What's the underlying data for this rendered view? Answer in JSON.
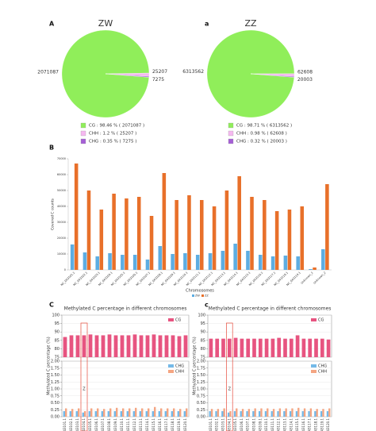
{
  "chart_data": [
    {
      "type": "pie",
      "panel": "A",
      "title": "ZW",
      "categories": [
        "CG",
        "CHH",
        "CHG"
      ],
      "values": [
        2071087,
        25207,
        7275
      ],
      "colors": [
        "#90ee5a",
        "#f5b8f0",
        "#a55fd6"
      ],
      "legend": [
        "CG : 98.46 % ( 2071087 )",
        "CHH : 1.2 % ( 25207 )",
        "CHG : 0.35 % ( 7275 )"
      ]
    },
    {
      "type": "pie",
      "panel": "a",
      "title": "ZZ",
      "categories": [
        "CG",
        "CHH",
        "CHG"
      ],
      "values": [
        6313562,
        62608,
        20003
      ],
      "colors": [
        "#90ee5a",
        "#f5b8f0",
        "#a55fd6"
      ],
      "legend": [
        "CG : 98.71 % ( 6313562 )",
        "CHH : 0.98 % ( 62608 )",
        "CHG : 0.32 % ( 20003 )"
      ]
    },
    {
      "type": "bar",
      "panel": "B",
      "xlabel": "Chromosomes",
      "ylabel": "Covered C counts",
      "categories": [
        "NC_043101.1",
        "NC_043102.1",
        "NC_043103.1",
        "NC_043104.1",
        "NC_043105.1",
        "NC_043106.1",
        "NC_043107.1",
        "NC_043108.1",
        "NC_043109.1",
        "NC_043110.1",
        "NC_043111.1",
        "NC_043112.1",
        "NC_043113.1",
        "NC_043114.1",
        "NC_043115.1",
        "NC_043116.1",
        "NC_043117.1",
        "NC_043118.1",
        "NC_043119.1",
        "Unknown_1",
        "Unknown_2"
      ],
      "series": [
        {
          "name": "ZW",
          "color": "#5dade2",
          "values": [
            16000,
            11000,
            8500,
            10500,
            9500,
            9500,
            6500,
            15000,
            10000,
            10500,
            9500,
            10500,
            12000,
            16500,
            12000,
            9500,
            8500,
            9000,
            8500,
            500,
            13000
          ]
        },
        {
          "name": "ZZ",
          "color": "#e8702a",
          "values": [
            67000,
            50000,
            38000,
            48000,
            45000,
            46000,
            34000,
            61000,
            44000,
            47000,
            44000,
            40000,
            50000,
            59000,
            46000,
            44000,
            37000,
            38000,
            40000,
            1500,
            54000
          ]
        }
      ],
      "ylim": [
        0,
        70000
      ],
      "yticks": [
        0,
        10000,
        20000,
        30000,
        40000,
        50000,
        60000,
        70000
      ]
    },
    {
      "type": "broken_bar",
      "panel": "C",
      "title": "Methylated C percentage in different chromosomes",
      "ylabel": "Methylated C percentage (%)",
      "categories": [
        "NC_043101.1",
        "NC_043102.1",
        "NC_043103.1",
        "NC_043104.1",
        "NC_043105.1",
        "NC_043106.1",
        "NC_043107.1",
        "NC_043108.1",
        "NC_043109.1",
        "NC_043110.1",
        "NC_043111.1",
        "NC_043112.1",
        "NC_043113.1",
        "NC_043114.1",
        "NC_043115.1",
        "NC_043116.1",
        "NC_043117.1",
        "NC_043118.1",
        "NC_043119.1",
        "NC_043120.1"
      ],
      "series": [
        {
          "name": "CG",
          "color": "#e75480",
          "axis": "top",
          "values": [
            87,
            88,
            88,
            88,
            88.5,
            88,
            88,
            88.5,
            88,
            88,
            88,
            88.5,
            88,
            88,
            88.5,
            88,
            88,
            88,
            87.5,
            88
          ]
        },
        {
          "name": "CHG",
          "color": "#74b9e8",
          "axis": "bottom",
          "values": [
            0.2,
            0.2,
            0.2,
            0.15,
            0.2,
            0.2,
            0.2,
            0.2,
            0.2,
            0.2,
            0.2,
            0.2,
            0.2,
            0.2,
            0.2,
            0.2,
            0.2,
            0.2,
            0.2,
            0.2
          ]
        },
        {
          "name": "CHH",
          "color": "#f4a582",
          "axis": "bottom",
          "values": [
            0.3,
            0.28,
            0.3,
            0.2,
            0.3,
            0.3,
            0.28,
            0.3,
            0.32,
            0.3,
            0.3,
            0.32,
            0.3,
            0.3,
            0.35,
            0.3,
            0.3,
            0.3,
            0.28,
            0.3
          ]
        }
      ],
      "ylim_top": [
        75,
        100
      ],
      "yticks_top": [
        75,
        80,
        85,
        90,
        95,
        100
      ],
      "ylim_bottom": [
        0,
        2.0
      ],
      "yticks_bottom": [
        {
          "value": 0,
          "label": "0.00"
        },
        {
          "value": 0.25,
          "label": "0.25"
        },
        {
          "value": 0.5,
          "label": "0.50"
        },
        {
          "value": 0.75,
          "label": "0.75"
        },
        {
          "value": 1.0,
          "label": "1.00"
        },
        {
          "value": 1.25,
          "label": "1.25"
        },
        {
          "value": 1.5,
          "label": "1.50"
        },
        {
          "value": 1.75,
          "label": "1.75"
        },
        {
          "value": 2.0,
          "label": "2.00"
        }
      ],
      "highlight_index": 3,
      "highlight_label": "Z"
    },
    {
      "type": "broken_bar",
      "panel": "c",
      "title": "Methylated C percentage in different chromosomes",
      "ylabel": "Methylated C percentage (%)",
      "categories": [
        "NC_043101.1",
        "NC_043102.1",
        "NC_043103.1",
        "NC_043104.1",
        "NC_043105.1",
        "NC_043106.1",
        "NC_043107.1",
        "NC_043108.1",
        "NC_043109.1",
        "NC_043110.1",
        "NC_043111.1",
        "NC_043112.1",
        "NC_043113.1",
        "NC_043114.1",
        "NC_043115.1",
        "NC_043116.1",
        "NC_043117.1",
        "NC_043118.1",
        "NC_043119.1",
        "NC_043120.1"
      ],
      "series": [
        {
          "name": "CG",
          "color": "#e75480",
          "axis": "top",
          "values": [
            86,
            86,
            86,
            86,
            86.5,
            86,
            86,
            86,
            86,
            86,
            86,
            86.5,
            86,
            86,
            88,
            86,
            86,
            86,
            86,
            85.5
          ]
        },
        {
          "name": "CHG",
          "color": "#74b9e8",
          "axis": "bottom",
          "values": [
            0.2,
            0.2,
            0.2,
            0.15,
            0.2,
            0.2,
            0.2,
            0.2,
            0.2,
            0.2,
            0.2,
            0.2,
            0.2,
            0.2,
            0.2,
            0.2,
            0.2,
            0.2,
            0.2,
            0.2
          ]
        },
        {
          "name": "CHH",
          "color": "#f4a582",
          "axis": "bottom",
          "values": [
            0.28,
            0.28,
            0.3,
            0.2,
            0.3,
            0.28,
            0.28,
            0.3,
            0.3,
            0.3,
            0.28,
            0.3,
            0.3,
            0.3,
            0.32,
            0.3,
            0.3,
            0.28,
            0.28,
            0.3
          ]
        }
      ],
      "ylim_top": [
        75,
        100
      ],
      "yticks_top": [
        75,
        80,
        85,
        90,
        95,
        100
      ],
      "ylim_bottom": [
        0,
        2.0
      ],
      "yticks_bottom": [
        {
          "value": 0,
          "label": "0.00"
        },
        {
          "value": 0.25,
          "label": "0.25"
        },
        {
          "value": 0.5,
          "label": "0.50"
        },
        {
          "value": 0.75,
          "label": "0.75"
        },
        {
          "value": 1.0,
          "label": "1.00"
        },
        {
          "value": 1.25,
          "label": "1.25"
        },
        {
          "value": 1.5,
          "label": "1.50"
        },
        {
          "value": 1.75,
          "label": "1.75"
        },
        {
          "value": 2.0,
          "label": "2.00"
        }
      ],
      "highlight_index": 3,
      "highlight_label": "Z"
    }
  ]
}
